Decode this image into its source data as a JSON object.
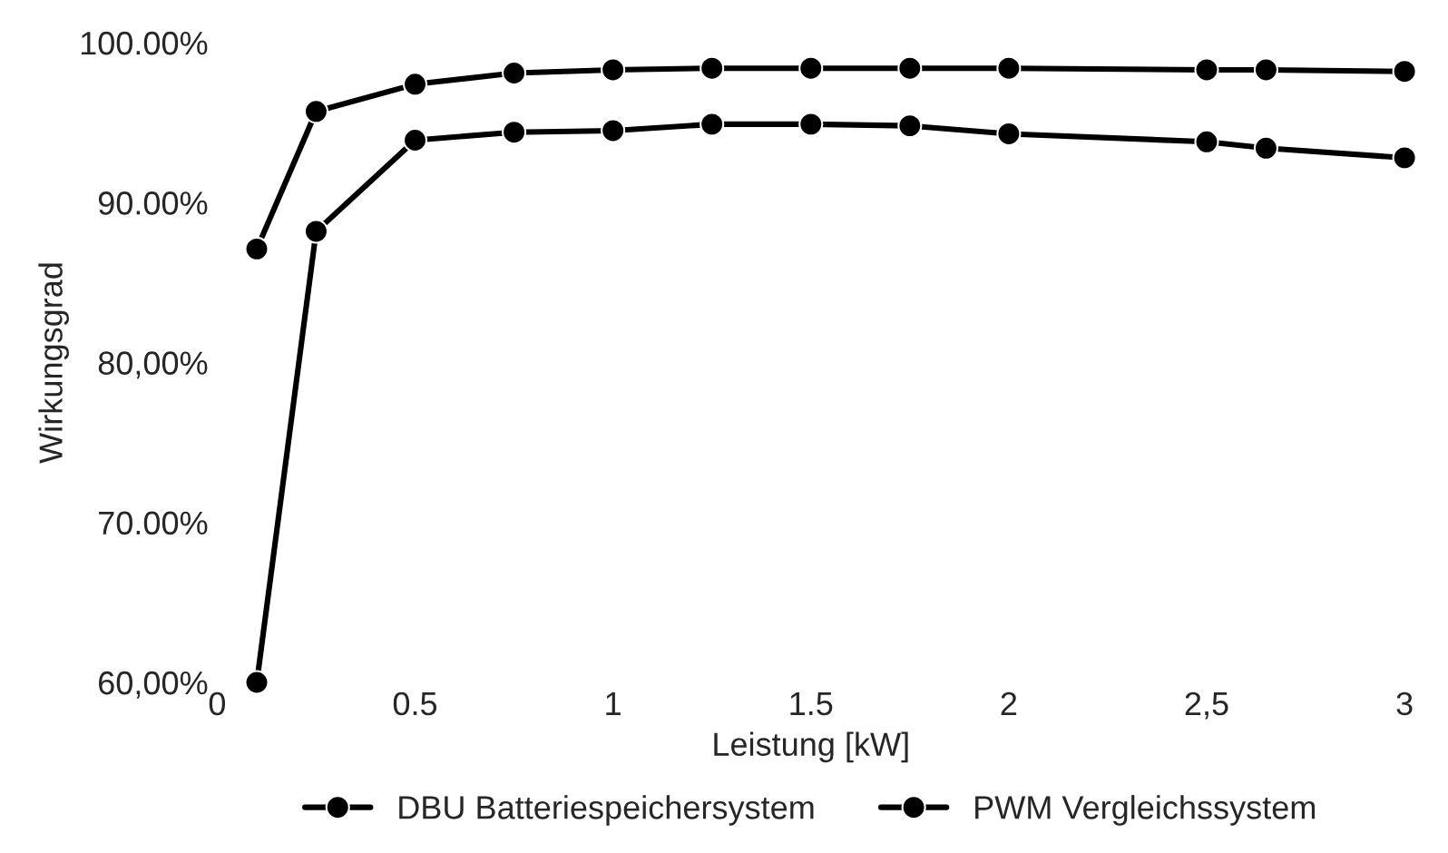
{
  "chart_data": {
    "type": "line",
    "xlabel": "Leistung [kW]",
    "ylabel": "Wirkungsgrad",
    "x": [
      0.1,
      0.25,
      0.5,
      0.75,
      1,
      1.25,
      1.5,
      1.75,
      2,
      2.5,
      2.65,
      3
    ],
    "series": [
      {
        "name": "DBU Batteriespeichersystem",
        "color": "#000000",
        "values": [
          87.1,
          95.7,
          97.4,
          98.1,
          98.3,
          98.4,
          98.4,
          98.4,
          98.4,
          98.3,
          98.3,
          98.2
        ]
      },
      {
        "name": "PWM Vergleichssystem",
        "color": "#000000",
        "values": [
          60.0,
          88.2,
          93.9,
          94.4,
          94.5,
          94.9,
          94.9,
          94.8,
          94.3,
          93.8,
          93.4,
          92.8
        ]
      }
    ],
    "xlim": [
      0,
      3
    ],
    "ylim": [
      60,
      100
    ],
    "xticks": [
      0,
      0.5,
      1,
      1.5,
      2,
      {
        "value": 2.5,
        "label": "2,5"
      },
      3
    ],
    "yticks": [
      {
        "value": 60,
        "label": "60,00%"
      },
      {
        "value": 70,
        "label": "70.00%"
      },
      {
        "value": 80,
        "label": "80,00%"
      },
      {
        "value": 90,
        "label": "90.00%"
      },
      {
        "value": 100,
        "label": "100.00%"
      }
    ],
    "grid": false,
    "legend": "bottom",
    "marker": "circle",
    "line_style": "solid"
  }
}
